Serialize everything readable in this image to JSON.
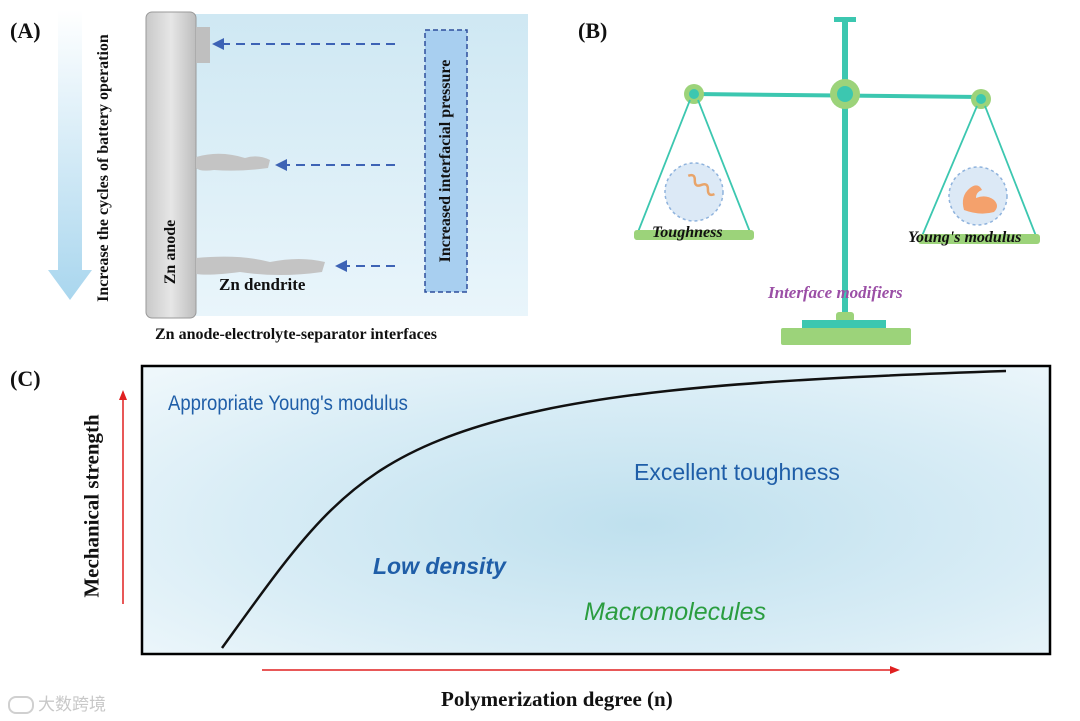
{
  "panels": {
    "a": {
      "label": "(A)",
      "vertical_text": "Increase the cycles of battery operation",
      "anode_label": "Zn anode",
      "dendrite_label": "Zn dendrite",
      "pressure_label": "Increased interfacial pressure",
      "caption": "Zn anode-electrolyte-separator interfaces"
    },
    "b": {
      "label": "(B)",
      "left_pan_label": "Toughness",
      "right_pan_label": "Young's modulus",
      "center_label": "Interface modifiers"
    },
    "c": {
      "label": "(C)",
      "y_axis_label": "Mechanical strength",
      "x_axis_label": "Polymerization degree (n)",
      "text_appropriate": "Appropriate Young's modulus",
      "text_toughness": "Excellent toughness",
      "text_low_density": "Low density",
      "text_macromolecules": "Macromolecules"
    }
  },
  "watermark": "大数跨境",
  "colors": {
    "dark_blue_text": "#1f5ea8",
    "green_text": "#2a9d3f",
    "purple_text": "#9b4fa6",
    "arrow_red": "#e02020",
    "scale_teal": "#3cc7b0",
    "scale_green": "#9cd37a"
  }
}
